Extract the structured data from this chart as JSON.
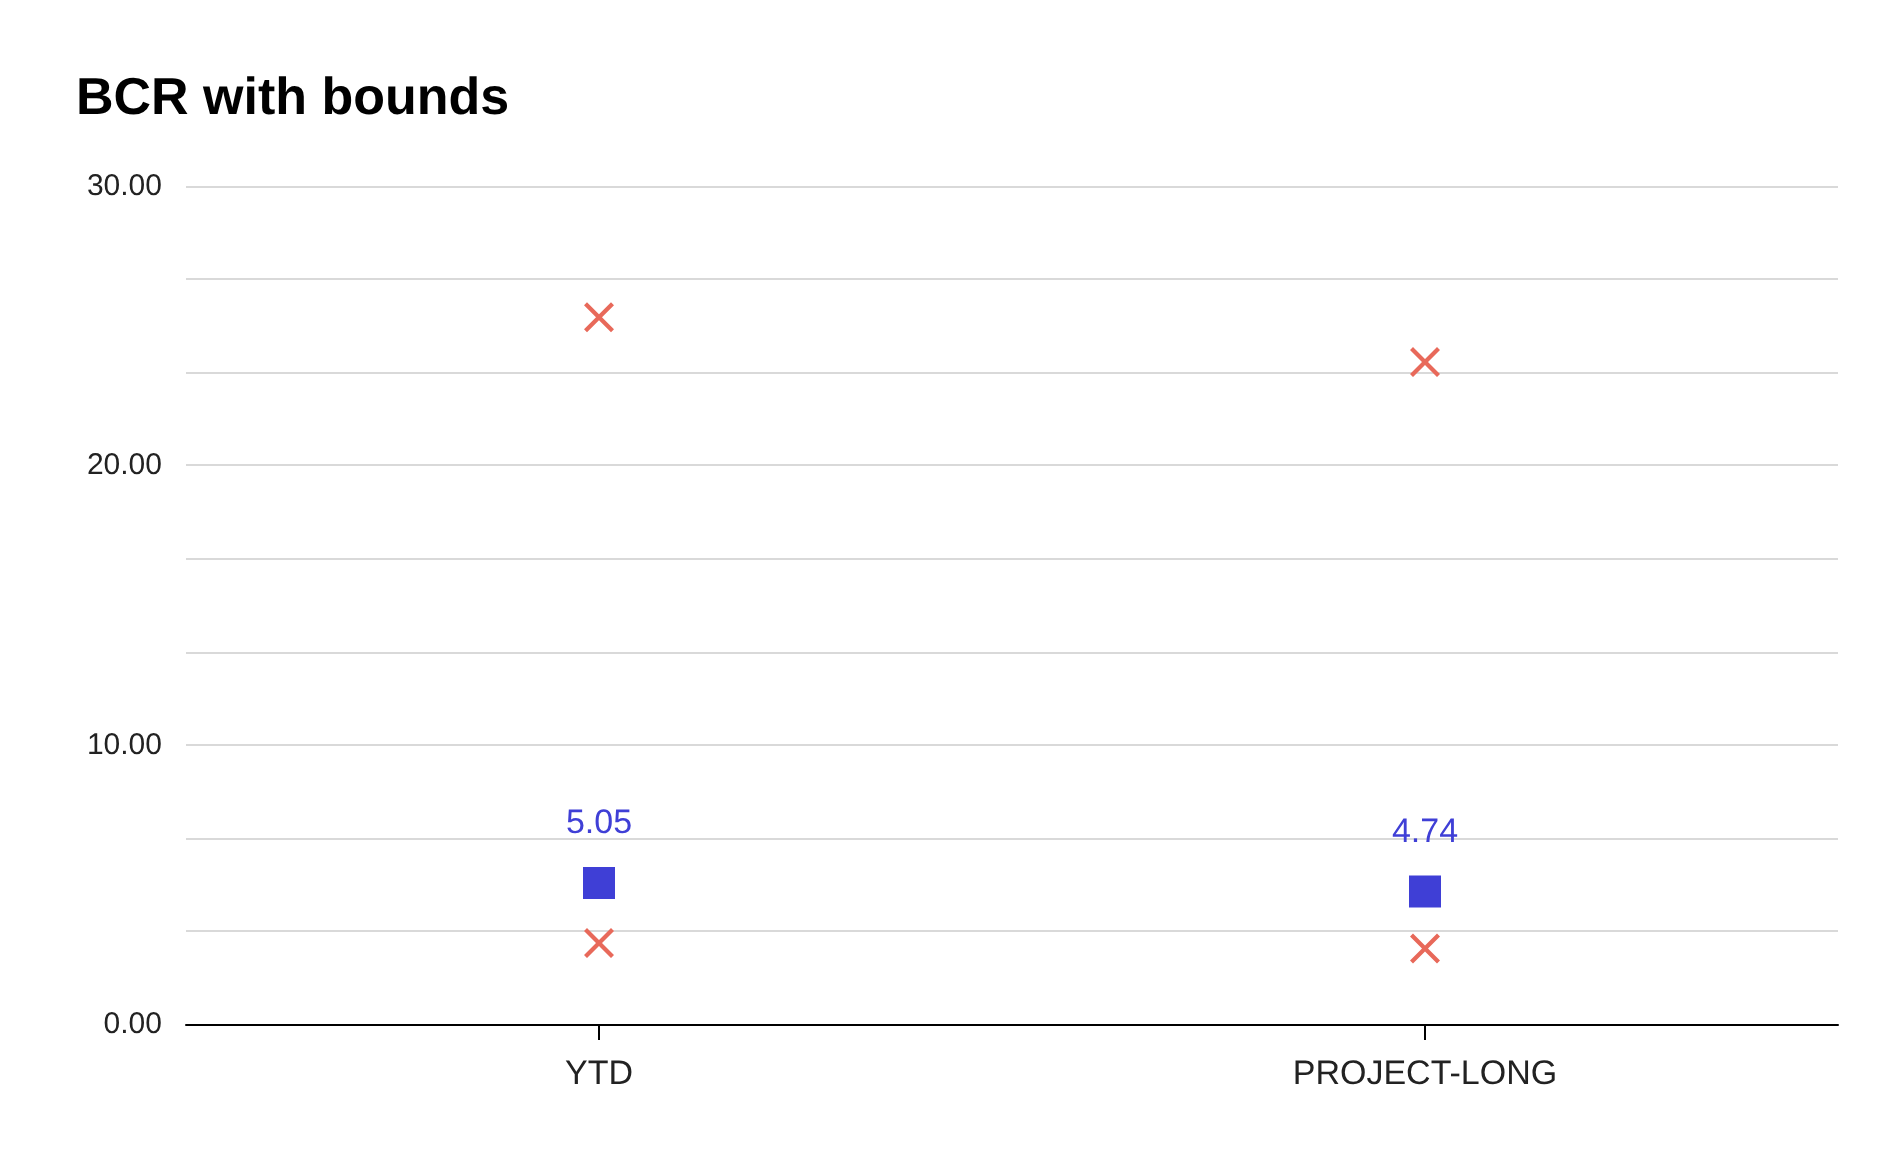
{
  "chart_data": {
    "type": "scatter",
    "title": "BCR with bounds",
    "categories": [
      "YTD",
      "PROJECT-LONG"
    ],
    "series": [
      {
        "color": "#3f3fd6",
        "marker": "square",
        "values": [
          5.05,
          4.74
        ],
        "value_labels": [
          "5.05",
          "4.74"
        ]
      },
      {
        "color": "#e8695a",
        "marker": "cross",
        "values": [
          25.3,
          23.7
        ]
      },
      {
        "color": "#e8695a",
        "marker": "cross",
        "values": [
          2.9,
          2.7
        ]
      }
    ],
    "ylim": [
      0,
      30
    ],
    "yticks": [
      {
        "value": 0,
        "label": "0.00"
      },
      {
        "value": 3.33,
        "label": null
      },
      {
        "value": 6.67,
        "label": null
      },
      {
        "value": 10,
        "label": "10.00"
      },
      {
        "value": 13.33,
        "label": null
      },
      {
        "value": 16.67,
        "label": null
      },
      {
        "value": 20,
        "label": "20.00"
      },
      {
        "value": 23.33,
        "label": null
      },
      {
        "value": 26.67,
        "label": null
      },
      {
        "value": 30,
        "label": "30.00"
      }
    ],
    "grid": "y"
  }
}
